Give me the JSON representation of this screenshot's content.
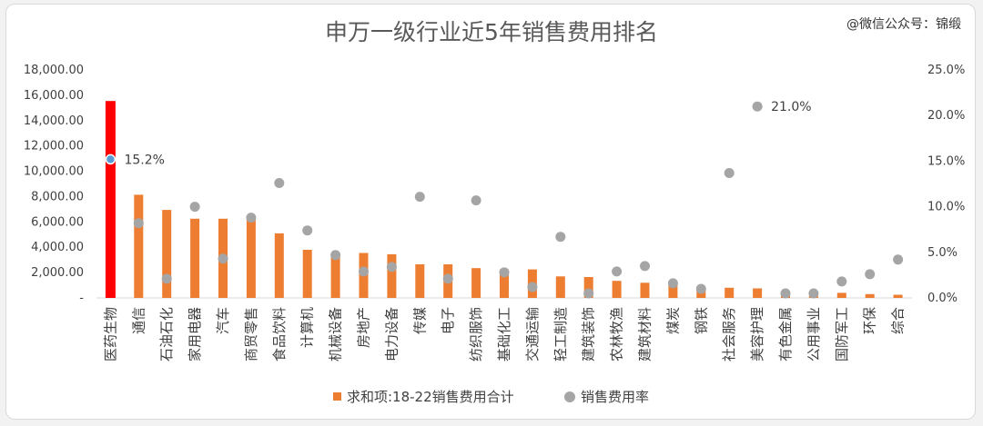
{
  "watermark": "@微信公众号：锦缎",
  "chart_data": {
    "type": "bar",
    "title": "申万一级行业近5年销售费用排名",
    "categories": [
      "医药生物",
      "通信",
      "石油石化",
      "家用电器",
      "汽车",
      "商贸零售",
      "食品饮料",
      "计算机",
      "机械设备",
      "房地产",
      "电力设备",
      "传媒",
      "电子",
      "纺织服饰",
      "基础化工",
      "交通运输",
      "轻工制造",
      "建筑装饰",
      "农林牧渔",
      "建筑材料",
      "煤炭",
      "钢铁",
      "社会服务",
      "美容护理",
      "有色金属",
      "公用事业",
      "国防军工",
      "环保",
      "综合"
    ],
    "series": [
      {
        "name": "求和项:18-22销售费用合计",
        "type": "bar",
        "axis": "left",
        "color": "#ed7d31",
        "highlight": {
          "index": 0,
          "color": "#ff0000"
        },
        "values": [
          15550,
          8150,
          6950,
          6250,
          6250,
          6200,
          5100,
          3800,
          3300,
          3550,
          3450,
          2650,
          2650,
          2350,
          2250,
          2250,
          1700,
          1650,
          1350,
          1200,
          1050,
          700,
          800,
          750,
          250,
          200,
          400,
          300,
          250
        ]
      },
      {
        "name": "销售费用率",
        "type": "scatter",
        "axis": "right",
        "color": "#a5a5a5",
        "highlight": {
          "index": 0,
          "color": "#5b9bd5"
        },
        "values": [
          15.2,
          8.2,
          2.1,
          10.0,
          4.3,
          8.8,
          12.6,
          7.4,
          4.7,
          2.9,
          3.4,
          11.1,
          2.1,
          10.7,
          2.8,
          1.2,
          6.7,
          0.5,
          2.9,
          3.5,
          1.6,
          1.0,
          13.7,
          21.0,
          0.5,
          0.5,
          1.8,
          2.6,
          4.2
        ]
      }
    ],
    "data_labels": [
      {
        "series": 1,
        "index": 0,
        "text": "15.2%"
      },
      {
        "series": 1,
        "index": 23,
        "text": "21.0%"
      }
    ],
    "y_left": {
      "ylim": [
        0,
        18000
      ],
      "ticks": [
        "-",
        "2,000.00",
        "4,000.00",
        "6,000.00",
        "8,000.00",
        "10,000.00",
        "12,000.00",
        "14,000.00",
        "16,000.00",
        "18,000.00"
      ]
    },
    "y_right": {
      "ylim": [
        0,
        25
      ],
      "ticks": [
        "0.0%",
        "5.0%",
        "10.0%",
        "15.0%",
        "20.0%",
        "25.0%"
      ]
    },
    "grid": false,
    "legend": "bottom"
  }
}
